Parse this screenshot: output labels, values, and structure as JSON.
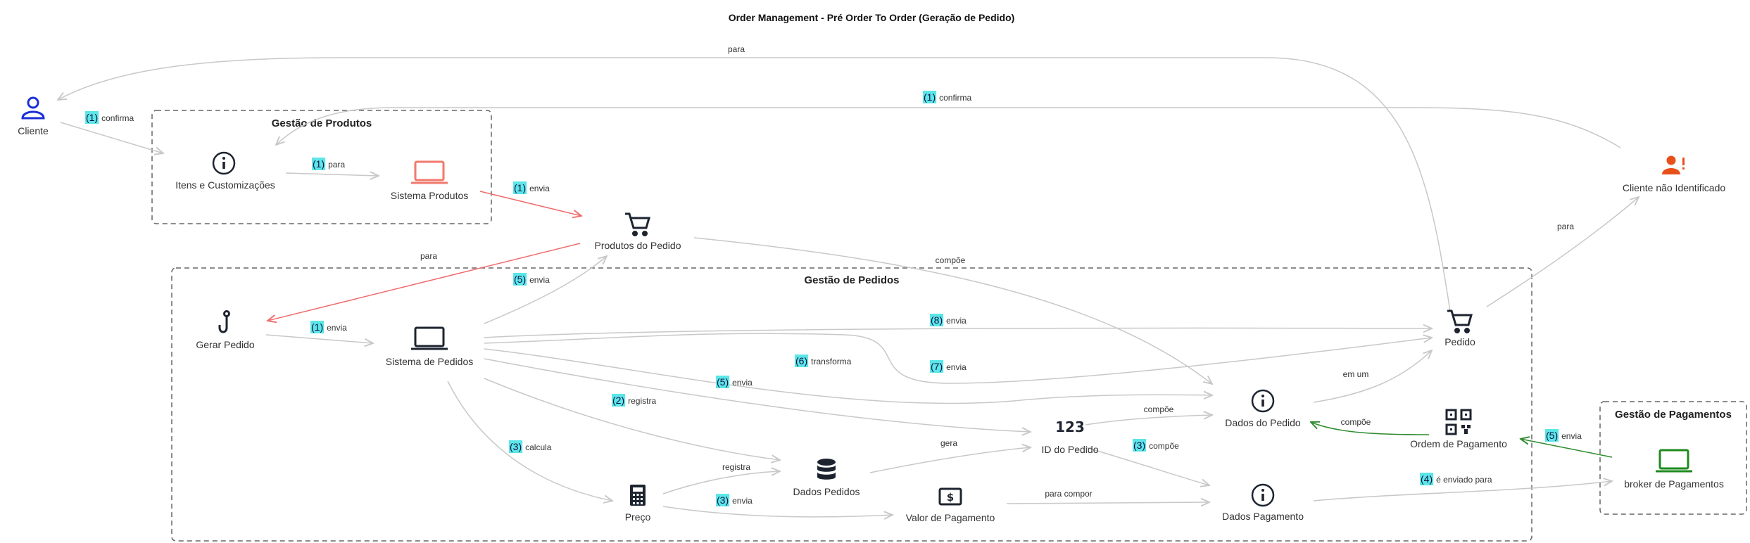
{
  "title": "Order Management - Pré Order To Order (Geração de Pedido)",
  "colors": {
    "edge": "#c8c8c8",
    "edge_red": "#f06c6c",
    "edge_green": "#2e8b2e",
    "badge": "#5ce6e8",
    "actor_blue": "#1a2fd6",
    "actor_orange": "#e8501a",
    "laptop_red": "#f07a6e",
    "laptop_green": "#1d8a1d",
    "icon_dark": "#1d2430"
  },
  "groups": [
    {
      "id": "produtos",
      "title": "Gestão de Produtos"
    },
    {
      "id": "pedidos",
      "title": "Gestão de Pedidos"
    },
    {
      "id": "pagamentos",
      "title": "Gestão de Pagamentos"
    }
  ],
  "nodes": [
    {
      "id": "cliente",
      "label": "Cliente",
      "icon": "user-icon"
    },
    {
      "id": "itens",
      "label": "Itens e Customizações",
      "icon": "info-icon"
    },
    {
      "id": "sistema_produtos",
      "label": "Sistema Produtos",
      "icon": "laptop-icon"
    },
    {
      "id": "produtos_pedido",
      "label": "Produtos do Pedido",
      "icon": "cart-icon"
    },
    {
      "id": "gerar_pedido",
      "label": "Gerar Pedido",
      "icon": "hook-icon"
    },
    {
      "id": "sistema_pedidos",
      "label": "Sistema de Pedidos",
      "icon": "laptop-icon"
    },
    {
      "id": "preco",
      "label": "Preço",
      "icon": "calculator-icon"
    },
    {
      "id": "dados_pedidos",
      "label": "Dados Pedidos",
      "icon": "database-icon"
    },
    {
      "id": "valor_pagamento",
      "label": "Valor de Pagamento",
      "icon": "dollar-icon"
    },
    {
      "id": "id_pedido",
      "label": "ID do Pedido",
      "icon": "numbers-icon",
      "icon_text": "123"
    },
    {
      "id": "dados_do_pedido",
      "label": "Dados do Pedido",
      "icon": "info-icon"
    },
    {
      "id": "dados_pagamento",
      "label": "Dados Pagamento",
      "icon": "info-icon"
    },
    {
      "id": "pedido",
      "label": "Pedido",
      "icon": "cart-icon"
    },
    {
      "id": "ordem_pagamento",
      "label": "Ordem de Pagamento",
      "icon": "qr-code-icon"
    },
    {
      "id": "broker",
      "label": "broker de Pagamentos",
      "icon": "laptop-icon"
    },
    {
      "id": "cliente_nao_id",
      "label": "Cliente não Identificado",
      "icon": "user-alert-icon"
    }
  ],
  "edges": [
    {
      "id": "e1",
      "num": "",
      "text": "para"
    },
    {
      "id": "e2",
      "num": "(1)",
      "text": "confirma"
    },
    {
      "id": "e3",
      "num": "(1)",
      "text": "confirma"
    },
    {
      "id": "e4",
      "num": "(1)",
      "text": "para"
    },
    {
      "id": "e5",
      "num": "(1)",
      "text": "envia"
    },
    {
      "id": "e6",
      "num": "",
      "text": "para"
    },
    {
      "id": "e7",
      "num": "",
      "text": "compõe"
    },
    {
      "id": "e8",
      "num": "",
      "text": "para"
    },
    {
      "id": "e9",
      "num": "(1)",
      "text": "envia"
    },
    {
      "id": "e10",
      "num": "(5)",
      "text": "envia"
    },
    {
      "id": "e11",
      "num": "(8)",
      "text": "envia"
    },
    {
      "id": "e12",
      "num": "(6)",
      "text": "transforma"
    },
    {
      "id": "e13",
      "num": "(7)",
      "text": "envia"
    },
    {
      "id": "e14",
      "num": "(5)",
      "text": "envia"
    },
    {
      "id": "e15",
      "num": "(2)",
      "text": "registra"
    },
    {
      "id": "e16",
      "num": "(3)",
      "text": "calcula"
    },
    {
      "id": "e17",
      "num": "",
      "text": "registra"
    },
    {
      "id": "e18",
      "num": "(3)",
      "text": "envia"
    },
    {
      "id": "e19",
      "num": "",
      "text": "gera"
    },
    {
      "id": "e20",
      "num": "",
      "text": "compõe"
    },
    {
      "id": "e21",
      "num": "(3)",
      "text": "compõe"
    },
    {
      "id": "e22",
      "num": "",
      "text": "para compor"
    },
    {
      "id": "e23",
      "num": "",
      "text": "em um"
    },
    {
      "id": "e24",
      "num": "",
      "text": "compõe"
    },
    {
      "id": "e25",
      "num": "(5)",
      "text": "envia"
    },
    {
      "id": "e26",
      "num": "(4)",
      "text": "é enviado para"
    }
  ]
}
